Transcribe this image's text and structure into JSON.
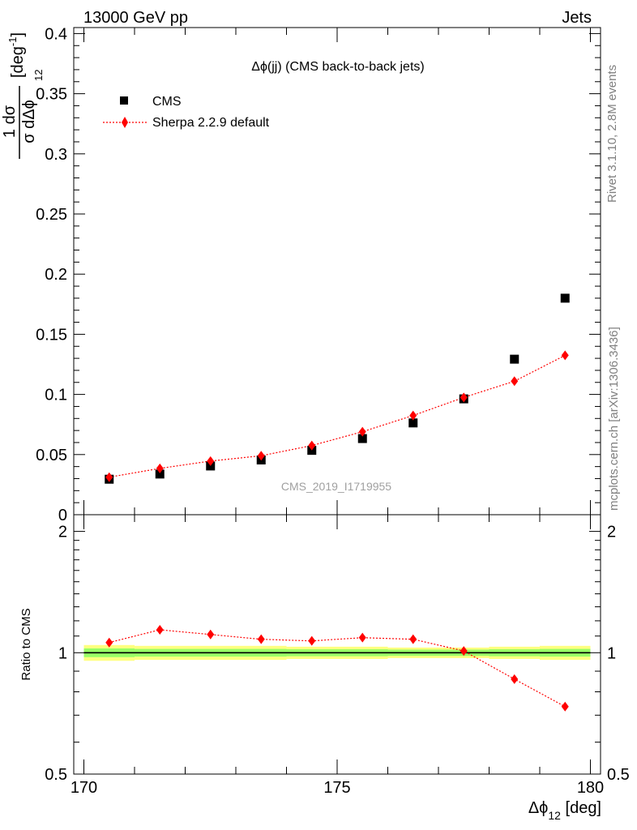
{
  "header": {
    "left": "13000 GeV pp",
    "right": "Jets"
  },
  "side_labels": {
    "rivet": "Rivet 3.1.10,  2.8M events",
    "mcplots": "mcplots.cern.ch [arXiv:1306.3436]"
  },
  "watermark": "CMS_2019_I1719955",
  "colors": {
    "data": "#000000",
    "mc": "#ff0000",
    "band_outer": "#ffff80",
    "band_inner": "#99ff66"
  },
  "chart_data": [
    {
      "type": "scatter",
      "panel": "main",
      "title": "Δϕ(jj) (CMS back-to-back jets)",
      "ylabel_parts": {
        "frac_top": "1 dσ",
        "frac_bottom": "σ dΔϕ",
        "frac_sub": "12",
        "unit": "[deg",
        "unit_sup": "-1",
        "unit_close": "]"
      },
      "ylim": [
        0,
        0.405
      ],
      "yticks": [
        {
          "v": 0,
          "label": "0"
        },
        {
          "v": 0.05,
          "label": "0.05"
        },
        {
          "v": 0.1,
          "label": "0.1"
        },
        {
          "v": 0.15,
          "label": "0.15"
        },
        {
          "v": 0.2,
          "label": "0.2"
        },
        {
          "v": 0.25,
          "label": "0.25"
        },
        {
          "v": 0.3,
          "label": "0.3"
        },
        {
          "v": 0.35,
          "label": "0.35"
        },
        {
          "v": 0.4,
          "label": "0.4"
        }
      ],
      "legend_position": "top-left",
      "series": [
        {
          "name": "CMS",
          "marker": "square",
          "x": [
            170.5,
            171.5,
            172.5,
            173.5,
            174.5,
            175.5,
            176.5,
            177.5,
            178.5,
            179.5
          ],
          "y": [
            0.0295,
            0.0338,
            0.0405,
            0.0455,
            0.0535,
            0.0633,
            0.0763,
            0.0963,
            0.1293,
            0.18
          ]
        },
        {
          "name": "Sherpa 2.2.9 default",
          "marker": "diamond",
          "line": "dotted",
          "x": [
            170.5,
            171.5,
            172.5,
            173.5,
            174.5,
            175.5,
            176.5,
            177.5,
            178.5,
            179.5
          ],
          "y": [
            0.0312,
            0.0385,
            0.0446,
            0.049,
            0.0575,
            0.069,
            0.0825,
            0.0975,
            0.111,
            0.1325
          ]
        }
      ]
    },
    {
      "type": "scatter",
      "panel": "ratio",
      "ylabel": "Ratio to CMS",
      "ylim": [
        0.5,
        2.2
      ],
      "yticks": [
        {
          "v": 0.5,
          "label": "0.5"
        },
        {
          "v": 1,
          "label": "1"
        },
        {
          "v": 2,
          "label": "2"
        }
      ],
      "xlabel_parts": {
        "main": "Δϕ",
        "sub": "12",
        "unit": " [deg]"
      },
      "xlim": [
        169.8,
        180.2
      ],
      "xticks": [
        {
          "v": 170,
          "label": "170"
        },
        {
          "v": 175,
          "label": "175"
        },
        {
          "v": 180,
          "label": "180"
        }
      ],
      "reference": 1.0,
      "band": {
        "x_edges": [
          170,
          171,
          172,
          173,
          174,
          175,
          176,
          177,
          178,
          179,
          180
        ],
        "outer": [
          0.045,
          0.04,
          0.04,
          0.04,
          0.035,
          0.035,
          0.03,
          0.03,
          0.035,
          0.04
        ],
        "inner": [
          0.025,
          0.022,
          0.022,
          0.022,
          0.02,
          0.02,
          0.018,
          0.018,
          0.02,
          0.022
        ]
      },
      "series": [
        {
          "name": "Sherpa 2.2.9 default",
          "marker": "diamond",
          "line": "dotted",
          "x": [
            170.5,
            171.5,
            172.5,
            173.5,
            174.5,
            175.5,
            176.5,
            177.5,
            178.5,
            179.5
          ],
          "y": [
            1.06,
            1.14,
            1.11,
            1.08,
            1.07,
            1.09,
            1.08,
            1.01,
            0.86,
            0.735
          ]
        }
      ]
    }
  ]
}
